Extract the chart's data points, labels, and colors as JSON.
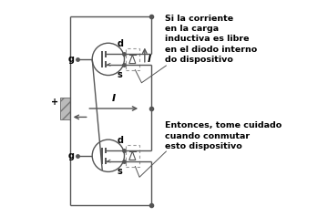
{
  "bg_color": "#ffffff",
  "line_color": "#555555",
  "dashed_color": "#999999",
  "annotation1": "Si la corriente\nen la carga\ninductiva es libre\nen el diodo interno\ndo dispositivo",
  "annotation2": "Entonces, tome cuidado\ncuando conmutar\nesto dispositivo",
  "label_g": "g",
  "label_d": "d",
  "label_s": "s",
  "label_l": "l",
  "label_i": "I",
  "label_plus": "+",
  "figsize": [
    3.6,
    2.38
  ],
  "dpi": 100
}
